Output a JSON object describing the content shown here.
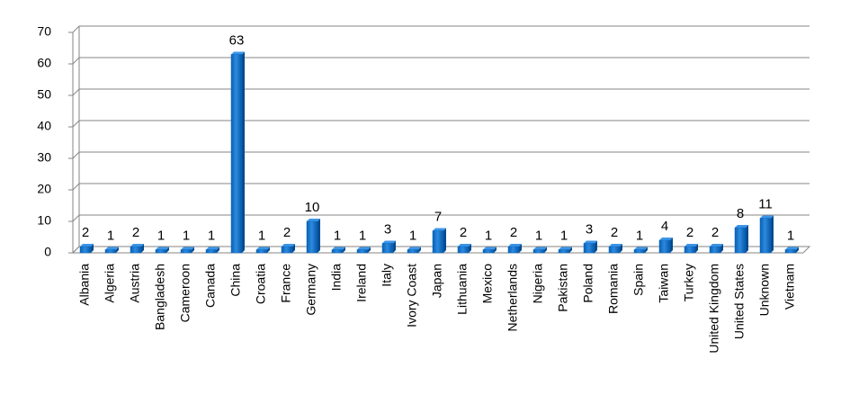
{
  "chart_data": {
    "type": "bar",
    "categories": [
      "Albania",
      "Algeria",
      "Austria",
      "Bangladesh",
      "Cameroon",
      "Canada",
      "China",
      "Croatia",
      "France",
      "Germany",
      "India",
      "Ireland",
      "Italy",
      "Ivory Coast",
      "Japan",
      "Lithuania",
      "Mexico",
      "Netherlands",
      "Nigeria",
      "Pakistan",
      "Poland",
      "Romania",
      "Spain",
      "Taiwan",
      "Turkey",
      "United Kingdom",
      "United States",
      "Unknown",
      "Vietnam"
    ],
    "values": [
      2,
      1,
      2,
      1,
      1,
      1,
      63,
      1,
      2,
      10,
      1,
      1,
      3,
      1,
      7,
      2,
      1,
      2,
      1,
      1,
      3,
      2,
      1,
      4,
      2,
      2,
      8,
      11,
      1
    ],
    "color": "#0a6ac4",
    "ylim": [
      0,
      70
    ],
    "yticks": [
      0,
      10,
      20,
      30,
      40,
      50,
      60,
      70
    ],
    "grid": true
  }
}
